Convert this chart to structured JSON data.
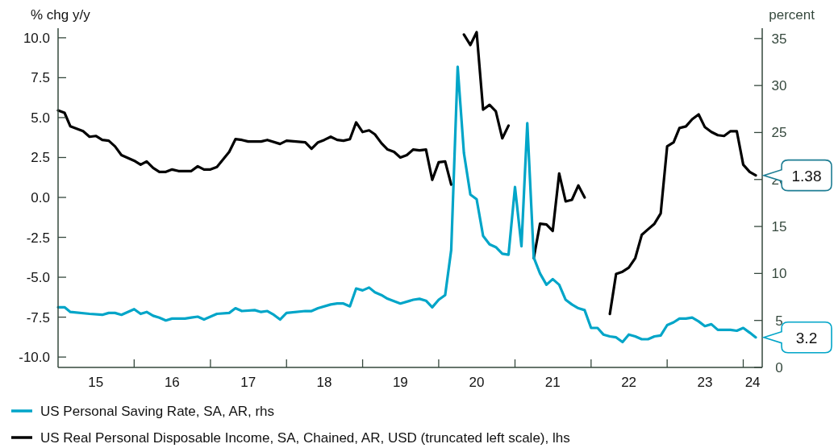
{
  "chart_data": {
    "type": "line",
    "ylabel": "% chg y/y",
    "y2label": "percent",
    "xlim": [
      "2015-01-01",
      "2024-04-01"
    ],
    "xticks": [
      {
        "value": "2015-07-01",
        "label": "15"
      },
      {
        "value": "2016-01-01",
        "label": null
      },
      {
        "value": "2016-07-01",
        "label": "16"
      },
      {
        "value": "2017-01-01",
        "label": null
      },
      {
        "value": "2017-07-01",
        "label": "17"
      },
      {
        "value": "2018-01-01",
        "label": null
      },
      {
        "value": "2018-07-01",
        "label": "18"
      },
      {
        "value": "2019-01-01",
        "label": null
      },
      {
        "value": "2019-07-01",
        "label": "19"
      },
      {
        "value": "2020-01-01",
        "label": null
      },
      {
        "value": "2020-07-01",
        "label": "20"
      },
      {
        "value": "2021-01-01",
        "label": null
      },
      {
        "value": "2021-07-01",
        "label": "21"
      },
      {
        "value": "2022-01-01",
        "label": null
      },
      {
        "value": "2022-07-01",
        "label": "22"
      },
      {
        "value": "2023-01-01",
        "label": null
      },
      {
        "value": "2023-07-01",
        "label": "23"
      },
      {
        "value": "2024-01-01",
        "label": null
      },
      {
        "value": "2024-02-15",
        "label": "24"
      }
    ],
    "ylim": [
      -10.65,
      10.6
    ],
    "yticks": [
      {
        "value": -10,
        "label": "-10.0"
      },
      -7.5,
      {
        "value": -5,
        "label": "-5.0"
      },
      -2.5,
      {
        "value": 0,
        "label": "0.0"
      },
      2.5,
      {
        "value": 5,
        "label": "5.0"
      },
      7.5,
      {
        "value": 10,
        "label": "10.0"
      }
    ],
    "y2lim": [
      0,
      36.1
    ],
    "y2ticks": [
      0,
      5,
      10,
      15,
      20,
      25,
      30,
      35
    ],
    "legend": "bottom",
    "annotations": [
      "3.2",
      "1.38"
    ],
    "series": [
      {
        "name": "US Personal Saving Rate, SA, AR, rhs",
        "color": "#00a5c8",
        "axis": "y2",
        "x": [
          "2015-01",
          "2015-02",
          "2015-03",
          "2015-06",
          "2015-08",
          "2015-09",
          "2015-10",
          "2015-11",
          "2016-01",
          "2016-02",
          "2016-03",
          "2016-04",
          "2016-05",
          "2016-06",
          "2016-07",
          "2016-09",
          "2016-10",
          "2016-11",
          "2016-12",
          "2017-02",
          "2017-04",
          "2017-05",
          "2017-06",
          "2017-08",
          "2017-09",
          "2017-10",
          "2017-11",
          "2017-12",
          "2018-01",
          "2018-04",
          "2018-05",
          "2018-06",
          "2018-08",
          "2018-09",
          "2018-10",
          "2018-11",
          "2018-12",
          "2019-01",
          "2019-02",
          "2019-03",
          "2019-04",
          "2019-05",
          "2019-07",
          "2019-09",
          "2019-10",
          "2019-11",
          "2019-12",
          "2020-01",
          "2020-02",
          "2020-03",
          "2020-04",
          "2020-05",
          "2020-06",
          "2020-07",
          "2020-08",
          "2020-09",
          "2020-10",
          "2020-11",
          "2020-12",
          "2021-01",
          "2021-02",
          "2021-03",
          "2021-04",
          "2021-05",
          "2021-06",
          "2021-07",
          "2021-08",
          "2021-09",
          "2021-10",
          "2021-11",
          "2021-12",
          "2022-01",
          "2022-02",
          "2022-03",
          "2022-04",
          "2022-05",
          "2022-06",
          "2022-07",
          "2022-08",
          "2022-09",
          "2022-10",
          "2022-11",
          "2022-12",
          "2023-01",
          "2023-02",
          "2023-03",
          "2023-04",
          "2023-05",
          "2023-06",
          "2023-07",
          "2023-08",
          "2023-09",
          "2023-10",
          "2023-11",
          "2023-12",
          "2024-01",
          "2024-02",
          "2024-03"
        ],
        "values": [
          6.4,
          6.4,
          5.9,
          5.7,
          5.6,
          5.8,
          5.8,
          5.6,
          6.2,
          5.7,
          5.9,
          5.5,
          5.3,
          5.0,
          5.2,
          5.2,
          5.3,
          5.4,
          5.1,
          5.7,
          5.8,
          6.3,
          6.0,
          6.1,
          5.9,
          6.0,
          5.6,
          5.1,
          5.8,
          6.0,
          6.0,
          6.3,
          6.7,
          6.8,
          6.8,
          6.5,
          8.4,
          8.2,
          8.5,
          8.0,
          7.7,
          7.3,
          6.8,
          7.2,
          7.3,
          7.1,
          6.4,
          7.2,
          7.7,
          12.5,
          32.0,
          22.8,
          18.4,
          17.9,
          14.0,
          13.1,
          12.8,
          12.1,
          12.0,
          19.2,
          12.9,
          26.0,
          11.7,
          10.0,
          8.8,
          9.4,
          8.8,
          7.2,
          6.7,
          6.3,
          6.1,
          4.2,
          4.2,
          3.5,
          3.3,
          3.2,
          2.7,
          3.5,
          3.3,
          3.0,
          3.0,
          3.3,
          3.4,
          4.5,
          4.8,
          5.2,
          5.2,
          5.3,
          4.9,
          4.4,
          4.6,
          4.0,
          4.0,
          4.0,
          3.9,
          4.2,
          3.7,
          3.2
        ]
      },
      {
        "name": "US Real Personal Disposable Income, SA, Chained, AR, USD (truncated left scale), lhs",
        "color": "#000000",
        "x": [
          "2015-01",
          "2015-02",
          "2015-03",
          "2015-05",
          "2015-06",
          "2015-07",
          "2015-08",
          "2015-09",
          "2015-10",
          "2015-11",
          "2016-01",
          "2016-02",
          "2016-03",
          "2016-04",
          "2016-05",
          "2016-06",
          "2016-07",
          "2016-08",
          "2016-10",
          "2016-11",
          "2016-12",
          "2017-01",
          "2017-02",
          "2017-04",
          "2017-05",
          "2017-06",
          "2017-07",
          "2017-09",
          "2017-10",
          "2017-12",
          "2018-01",
          "2018-04",
          "2018-05",
          "2018-06",
          "2018-07",
          "2018-08",
          "2018-09",
          "2018-10",
          "2018-11",
          "2018-12",
          "2019-01",
          "2019-02",
          "2019-03",
          "2019-04",
          "2019-05",
          "2019-06",
          "2019-07",
          "2019-08",
          "2019-09",
          "2019-10",
          "2019-11",
          "2019-12",
          "2020-01",
          "2020-02",
          "2020-03",
          "2020-04",
          "2020-05",
          "2020-06",
          "2020-07",
          "2020-08",
          "2020-09",
          "2020-10",
          "2020-11",
          "2020-12",
          "2021-01",
          "2021-02",
          "2021-03",
          "2021-04",
          "2021-05",
          "2021-06",
          "2021-07",
          "2021-08",
          "2021-09",
          "2021-10",
          "2021-11",
          "2021-12",
          "2022-01",
          "2022-02",
          "2022-03",
          "2022-04",
          "2022-05",
          "2022-06",
          "2022-07",
          "2022-08",
          "2022-09",
          "2022-10",
          "2022-11",
          "2022-12",
          "2023-01",
          "2023-02",
          "2023-03",
          "2023-04",
          "2023-05",
          "2023-06",
          "2023-07",
          "2023-08",
          "2023-09",
          "2023-10",
          "2023-11",
          "2023-12",
          "2024-01",
          "2024-02",
          "2024-03"
        ],
        "values": [
          5.45,
          5.3,
          4.45,
          4.15,
          3.8,
          3.85,
          3.6,
          3.55,
          3.2,
          2.65,
          2.3,
          2.05,
          2.25,
          1.85,
          1.6,
          1.6,
          1.75,
          1.65,
          1.65,
          1.95,
          1.75,
          1.75,
          1.9,
          2.85,
          3.65,
          3.6,
          3.5,
          3.5,
          3.6,
          3.35,
          3.55,
          3.45,
          3.05,
          3.45,
          3.6,
          3.8,
          3.6,
          3.55,
          3.65,
          4.7,
          4.1,
          4.2,
          3.95,
          3.4,
          3.0,
          2.85,
          2.5,
          2.65,
          3.0,
          2.95,
          3.0,
          1.1,
          2.2,
          2.25,
          0.8,
          null,
          10.2,
          9.55,
          10.35,
          5.5,
          5.8,
          5.4,
          3.7,
          4.5,
          null,
          null,
          null,
          -3.8,
          -1.65,
          -1.7,
          -2.1,
          1.5,
          -0.25,
          -0.15,
          0.75,
          0.0,
          null,
          null,
          null,
          -7.3,
          -4.8,
          -4.65,
          -4.4,
          -3.8,
          -2.35,
          -2.0,
          -1.65,
          -1.0,
          3.2,
          3.45,
          4.35,
          4.45,
          4.9,
          5.2,
          4.4,
          4.1,
          3.9,
          3.85,
          4.15,
          4.15,
          2.05,
          1.6,
          1.38
        ]
      }
    ]
  }
}
